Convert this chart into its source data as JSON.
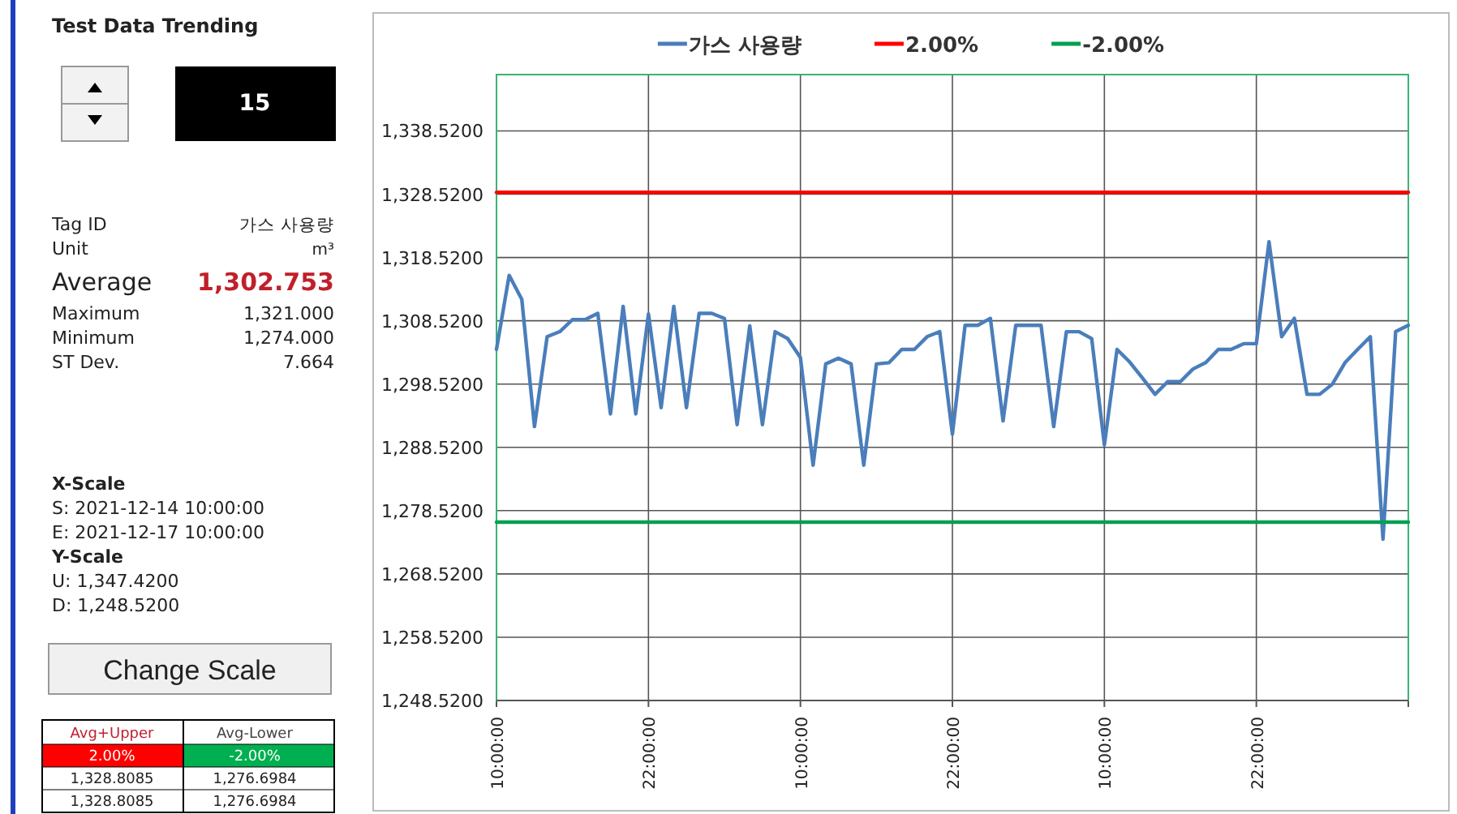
{
  "chart_data": [
    {
      "type": "line",
      "ylim": [
        1248.52,
        1347.42
      ],
      "yticks": [
        {
          "value": 1248.52,
          "label": "1,248.5200"
        },
        {
          "value": 1258.52,
          "label": "1,258.5200"
        },
        {
          "value": 1268.52,
          "label": "1,268.5200"
        },
        {
          "value": 1278.52,
          "label": "1,278.5200"
        },
        {
          "value": 1288.52,
          "label": "1,288.5200"
        },
        {
          "value": 1298.52,
          "label": "1,298.5200"
        },
        {
          "value": 1308.52,
          "label": "1,308.5200"
        },
        {
          "value": 1318.52,
          "label": "1,318.5200"
        },
        {
          "value": 1328.52,
          "label": "1,328.5200"
        },
        {
          "value": 1338.52,
          "label": "1,338.5200"
        }
      ],
      "xlim": [
        "2021-12-14T10:00",
        "2021-12-17T10:00"
      ],
      "xticks": [
        {
          "value": "2021-12-14T10:00",
          "label": "10:00:00"
        },
        {
          "value": "2021-12-14T22:00",
          "label": "22:00:00"
        },
        {
          "value": "2021-12-15T10:00",
          "label": "10:00:00"
        },
        {
          "value": "2021-12-15T22:00",
          "label": "22:00:00"
        },
        {
          "value": "2021-12-16T10:00",
          "label": "10:00:00"
        },
        {
          "value": "2021-12-16T22:00",
          "label": "22:00:00"
        },
        {
          "value": "2021-12-17T10:00",
          "label": null
        }
      ],
      "legend": "top",
      "x": [
        "2021-12-14T10:00",
        "2021-12-14T11:00",
        "2021-12-14T12:00",
        "2021-12-14T13:00",
        "2021-12-14T14:00",
        "2021-12-14T15:00",
        "2021-12-14T16:00",
        "2021-12-14T17:00",
        "2021-12-14T18:00",
        "2021-12-14T19:00",
        "2021-12-14T20:00",
        "2021-12-14T21:00",
        "2021-12-14T22:00",
        "2021-12-14T23:00",
        "2021-12-15T00:00",
        "2021-12-15T01:00",
        "2021-12-15T02:00",
        "2021-12-15T03:00",
        "2021-12-15T04:00",
        "2021-12-15T05:00",
        "2021-12-15T06:00",
        "2021-12-15T07:00",
        "2021-12-15T08:00",
        "2021-12-15T09:00",
        "2021-12-15T10:00",
        "2021-12-15T11:00",
        "2021-12-15T12:00",
        "2021-12-15T13:00",
        "2021-12-15T14:00",
        "2021-12-15T15:00",
        "2021-12-15T16:00",
        "2021-12-15T17:00",
        "2021-12-15T18:00",
        "2021-12-15T19:00",
        "2021-12-15T20:00",
        "2021-12-15T21:00",
        "2021-12-15T22:00",
        "2021-12-15T23:00",
        "2021-12-16T00:00",
        "2021-12-16T01:00",
        "2021-12-16T02:00",
        "2021-12-16T03:00",
        "2021-12-16T04:00",
        "2021-12-16T05:00",
        "2021-12-16T06:00",
        "2021-12-16T07:00",
        "2021-12-16T08:00",
        "2021-12-16T09:00",
        "2021-12-16T10:00",
        "2021-12-16T11:00",
        "2021-12-16T12:00",
        "2021-12-16T13:00",
        "2021-12-16T14:00",
        "2021-12-16T15:00",
        "2021-12-16T16:00",
        "2021-12-16T17:00",
        "2021-12-16T18:00",
        "2021-12-16T19:00",
        "2021-12-16T20:00",
        "2021-12-16T21:00",
        "2021-12-16T22:00",
        "2021-12-16T23:00",
        "2021-12-17T00:00",
        "2021-12-17T01:00",
        "2021-12-17T02:00",
        "2021-12-17T03:00",
        "2021-12-17T04:00",
        "2021-12-17T05:00",
        "2021-12-17T06:00",
        "2021-12-17T07:00",
        "2021-12-17T08:00",
        "2021-12-17T09:00",
        "2021-12-17T10:00"
      ],
      "series": [
        {
          "name": "가스 사용량",
          "color": "#4a7ebb",
          "values": [
            1304.0,
            1315.7,
            1311.9,
            1291.8,
            1306.0,
            1306.8,
            1308.7,
            1308.7,
            1309.7,
            1293.8,
            1310.8,
            1293.8,
            1309.6,
            1294.8,
            1310.8,
            1294.8,
            1309.7,
            1309.7,
            1308.9,
            1292.1,
            1307.7,
            1292.1,
            1306.8,
            1305.7,
            1302.7,
            1285.7,
            1301.7,
            1302.6,
            1301.7,
            1285.7,
            1301.7,
            1301.9,
            1304.0,
            1304.0,
            1306.0,
            1306.8,
            1290.6,
            1307.8,
            1307.8,
            1308.9,
            1292.7,
            1307.8,
            1307.8,
            1307.8,
            1291.8,
            1306.8,
            1306.8,
            1305.7,
            1288.9,
            1304.0,
            1302.0,
            1299.5,
            1296.9,
            1298.9,
            1298.9,
            1300.9,
            1301.9,
            1304.0,
            1304.0,
            1304.9,
            1304.9,
            1321.0,
            1306.0,
            1308.9,
            1296.9,
            1296.9,
            1298.5,
            1301.9,
            1304.0,
            1306.0,
            1274.0,
            1306.8,
            1307.8
          ]
        },
        {
          "name": "2.00%",
          "color": "#ff0000",
          "x": [
            "2021-12-14T10:00",
            "2021-12-17T10:00"
          ],
          "values": [
            1328.8085,
            1328.8085
          ]
        },
        {
          "name": "-2.00%",
          "color": "#00a050",
          "x": [
            "2021-12-14T10:00",
            "2021-12-17T10:00"
          ],
          "values": [
            1276.6984,
            1276.6984
          ]
        }
      ],
      "grid": true
    },
    {
      "type": "other",
      "title": "Test Data Trending",
      "annotations": [
        "15",
        "Tag ID",
        "가스 사용량",
        "Unit",
        "m³",
        "Average",
        "1,302.753",
        "Maximum",
        "1,321.000",
        "Minimum",
        "1,274.000",
        "ST Dev.",
        "7.664",
        "X-Scale",
        "S:  2021-12-14 10:00:00",
        "E:  2021-12-17 10:00:00",
        "Y-Scale",
        "U: 1,347.4200",
        "D: 1,248.5200",
        "Change Scale",
        "Avg+Upper",
        "Avg-Lower",
        "2.00%",
        "-2.00%",
        "1,328.8085",
        "1,276.6984",
        "1,328.8085",
        "1,276.6984"
      ]
    }
  ]
}
